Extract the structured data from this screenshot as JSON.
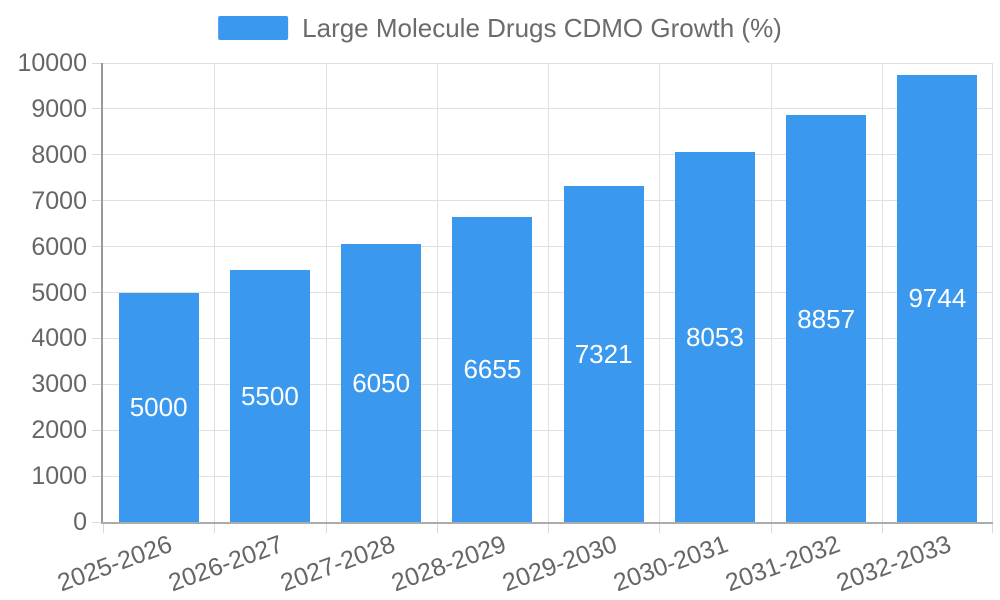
{
  "legend": {
    "label": "Large Molecule Drugs CDMO Growth (%)"
  },
  "chart_data": {
    "type": "bar",
    "title": "Large Molecule Drugs CDMO Growth (%)",
    "categories": [
      "2025-2026",
      "2026-2027",
      "2027-2028",
      "2028-2029",
      "2029-2030",
      "2030-2031",
      "2031-2032",
      "2032-2033"
    ],
    "values": [
      5000,
      5500,
      6050,
      6655,
      7321,
      8053,
      8857,
      9744
    ],
    "xlabel": "",
    "ylabel": "",
    "ylim": [
      0,
      10000
    ],
    "ytick_step": 1000,
    "ytick_labels": [
      "0",
      "1000",
      "2000",
      "3000",
      "4000",
      "5000",
      "6000",
      "7000",
      "8000",
      "9000",
      "10000"
    ],
    "legend_position": "top",
    "grid": true,
    "bar_label_position": "center-inside",
    "colors": {
      "bar": "#3a99ef",
      "bar_value_text": "#ffffff",
      "axis_text": "#666666",
      "legend_text": "#6b6b6b",
      "grid_line": "#e0e0e0",
      "tick_mark": "#d9d9d9",
      "axis_line_y": "#999999",
      "axis_line_x": "#ababab",
      "background": "#ffffff"
    }
  }
}
